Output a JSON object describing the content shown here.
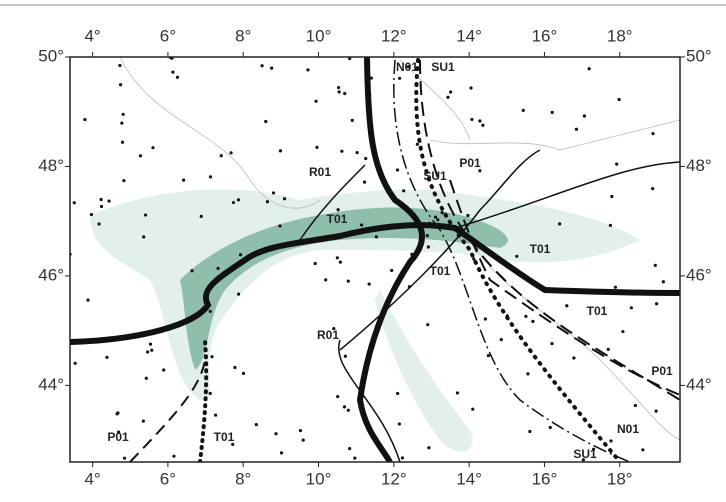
{
  "map": {
    "lon_range": [
      3.4,
      19.6
    ],
    "lat_range": [
      42.6,
      50
    ],
    "lon_ticks": [
      {
        "value": 4,
        "label": "4°"
      },
      {
        "value": 6,
        "label": "6°"
      },
      {
        "value": 8,
        "label": "8°"
      },
      {
        "value": 10,
        "label": "10°"
      },
      {
        "value": 12,
        "label": "12°"
      },
      {
        "value": 14,
        "label": "14°"
      },
      {
        "value": 16,
        "label": "16°"
      },
      {
        "value": 18,
        "label": "18°"
      }
    ],
    "lat_ticks": [
      {
        "value": 44,
        "label": "44°"
      },
      {
        "value": 46,
        "label": "46°"
      },
      {
        "value": 48,
        "label": "48°"
      },
      {
        "value": 50,
        "label": "50°"
      }
    ],
    "line_labels": [
      "N01",
      "SU1",
      "R01",
      "P01",
      "SU1",
      "T01",
      "T01",
      "T01",
      "R01",
      "T01",
      "P01",
      "P01",
      "T01",
      "N01",
      "SU1"
    ]
  }
}
